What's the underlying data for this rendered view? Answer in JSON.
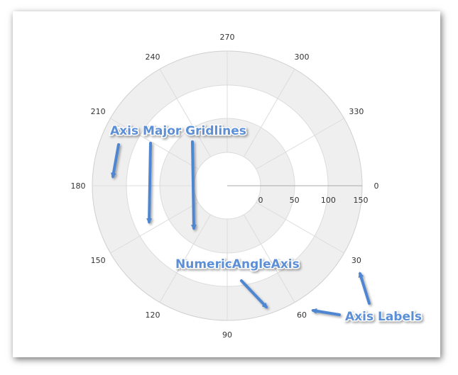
{
  "angle_labels": [
    "0",
    "30",
    "60",
    "90",
    "120",
    "150",
    "180",
    "210",
    "240",
    "270",
    "300",
    "330"
  ],
  "radius_labels": [
    "0",
    "50",
    "100",
    "150"
  ],
  "annotations": {
    "gridlines": "Axis Major Gridlines",
    "angle_axis": "NumericAngleAxis",
    "axis_labels": "Axis Labels"
  },
  "colors": {
    "band": "#efefef",
    "gridline": "#dcdcdc",
    "axis_line": "#aaaaaa",
    "arrow": "#4f86d1",
    "callout_text": "#5b8fd6"
  }
}
